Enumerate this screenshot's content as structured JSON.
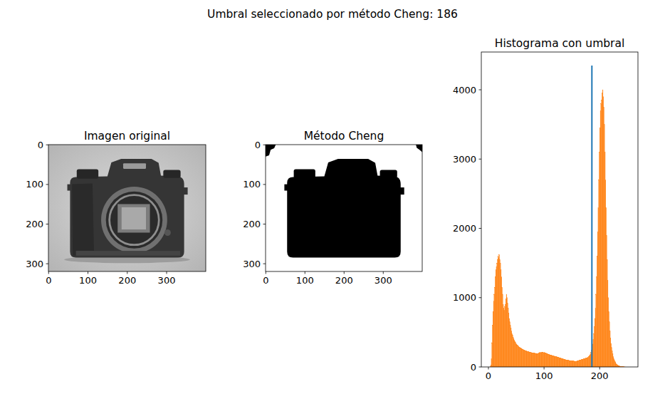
{
  "title": "Umbral seleccionado por método Cheng: 186",
  "chart_data": [
    {
      "type": "image",
      "title": "Imagen original",
      "color": "gray",
      "xlim": [
        -0.5,
        399.5
      ],
      "ylim": [
        319.5,
        -0.5
      ],
      "xticks": [
        0,
        100,
        200,
        300
      ],
      "yticks": [
        0,
        100,
        200,
        300
      ]
    },
    {
      "type": "image",
      "title": "Método Cheng",
      "color": "black",
      "xlim": [
        -0.5,
        399.5
      ],
      "ylim": [
        319.5,
        -0.5
      ],
      "xticks": [
        0,
        100,
        200,
        300
      ],
      "yticks": [
        0,
        100,
        200,
        300
      ]
    },
    {
      "type": "histogram",
      "title": "Histograma con umbral",
      "color": "#ff7f0e",
      "xlim": [
        -12.8,
        268.8
      ],
      "ylim": [
        0,
        4545
      ],
      "xticks": [
        0,
        100,
        200
      ],
      "yticks": [
        0,
        1000,
        2000,
        3000,
        4000
      ],
      "threshold": 186,
      "threshold_top": 4350,
      "bins": [
        0,
        1,
        2,
        3,
        4,
        5,
        6,
        7,
        8,
        9,
        10,
        11,
        12,
        13,
        14,
        15,
        16,
        17,
        18,
        19,
        20,
        21,
        22,
        23,
        24,
        25,
        26,
        27,
        28,
        29,
        30,
        31,
        32,
        33,
        34,
        35,
        36,
        37,
        38,
        39,
        40,
        41,
        42,
        43,
        44,
        45,
        46,
        47,
        48,
        49,
        50,
        51,
        52,
        53,
        54,
        55,
        56,
        57,
        58,
        59,
        60,
        61,
        62,
        63,
        64,
        65,
        66,
        67,
        68,
        69,
        70,
        71,
        72,
        73,
        74,
        75,
        76,
        77,
        78,
        79,
        80,
        81,
        82,
        83,
        84,
        85,
        86,
        87,
        88,
        89,
        90,
        91,
        92,
        93,
        94,
        95,
        96,
        97,
        98,
        99,
        100,
        101,
        102,
        103,
        104,
        105,
        106,
        107,
        108,
        109,
        110,
        111,
        112,
        113,
        114,
        115,
        116,
        117,
        118,
        119,
        120,
        121,
        122,
        123,
        124,
        125,
        126,
        127,
        128,
        129,
        130,
        131,
        132,
        133,
        134,
        135,
        136,
        137,
        138,
        139,
        140,
        141,
        142,
        143,
        144,
        145,
        146,
        147,
        148,
        149,
        150,
        151,
        152,
        153,
        154,
        155,
        156,
        157,
        158,
        159,
        160,
        161,
        162,
        163,
        164,
        165,
        166,
        167,
        168,
        169,
        170,
        171,
        172,
        173,
        174,
        175,
        176,
        177,
        178,
        179,
        180,
        181,
        182,
        183,
        184,
        185,
        186,
        187,
        188,
        189,
        190,
        191,
        192,
        193,
        194,
        195,
        196,
        197,
        198,
        199,
        200,
        201,
        202,
        203,
        204,
        205,
        206,
        207,
        208,
        209,
        210,
        211,
        212,
        213,
        214,
        215,
        216,
        217,
        218,
        219,
        220,
        221,
        222,
        223,
        224,
        225,
        226,
        227,
        228,
        229,
        230,
        231,
        232,
        233,
        234,
        235,
        236,
        237,
        238,
        239,
        240,
        241,
        242,
        243,
        244,
        245,
        246,
        247,
        248,
        249,
        250,
        251,
        252,
        253,
        254,
        255,
        256
      ],
      "values": [
        0,
        0,
        0,
        5,
        30,
        120,
        350,
        600,
        800,
        950,
        1050,
        1150,
        1300,
        1400,
        1450,
        1500,
        1550,
        1600,
        1580,
        1620,
        1550,
        1500,
        1400,
        1300,
        1150,
        1050,
        900,
        850,
        820,
        870,
        900,
        980,
        1050,
        1000,
        920,
        850,
        780,
        700,
        650,
        600,
        560,
        520,
        480,
        460,
        430,
        410,
        390,
        370,
        360,
        340,
        330,
        320,
        310,
        300,
        290,
        285,
        280,
        275,
        270,
        265,
        260,
        255,
        250,
        245,
        240,
        238,
        235,
        230,
        228,
        225,
        222,
        220,
        218,
        215,
        212,
        210,
        208,
        206,
        204,
        202,
        200,
        200,
        198,
        198,
        196,
        195,
        195,
        194,
        193,
        192,
        200,
        205,
        210,
        208,
        205,
        210,
        215,
        212,
        208,
        205,
        210,
        205,
        200,
        198,
        195,
        190,
        188,
        185,
        180,
        178,
        175,
        172,
        170,
        168,
        165,
        162,
        160,
        158,
        155,
        152,
        150,
        148,
        146,
        144,
        140,
        138,
        135,
        132,
        130,
        128,
        125,
        122,
        120,
        118,
        115,
        112,
        110,
        108,
        105,
        102,
        100,
        98,
        96,
        95,
        94,
        92,
        90,
        90,
        88,
        88,
        86,
        85,
        84,
        84,
        82,
        82,
        80,
        80,
        82,
        85,
        88,
        90,
        92,
        95,
        98,
        100,
        102,
        105,
        108,
        110,
        112,
        115,
        118,
        120,
        122,
        125,
        128,
        130,
        135,
        140,
        150,
        160,
        175,
        190,
        210,
        240,
        280,
        330,
        400,
        480,
        580,
        700,
        850,
        1050,
        1300,
        1600,
        1950,
        2300,
        2700,
        3100,
        3450,
        3700,
        3800,
        3850,
        3950,
        4000,
        3900,
        3750,
        3500,
        3100,
        2700,
        2300,
        1900,
        1550,
        1250,
        1000,
        800,
        650,
        520,
        420,
        340,
        280,
        230,
        190,
        150,
        120,
        100,
        80,
        65,
        50,
        40,
        32,
        25,
        20,
        15,
        12,
        10,
        8,
        6,
        5,
        4,
        3,
        2,
        2,
        1,
        1,
        0,
        0,
        0,
        0,
        0,
        0,
        0,
        0,
        0,
        0
      ]
    }
  ]
}
